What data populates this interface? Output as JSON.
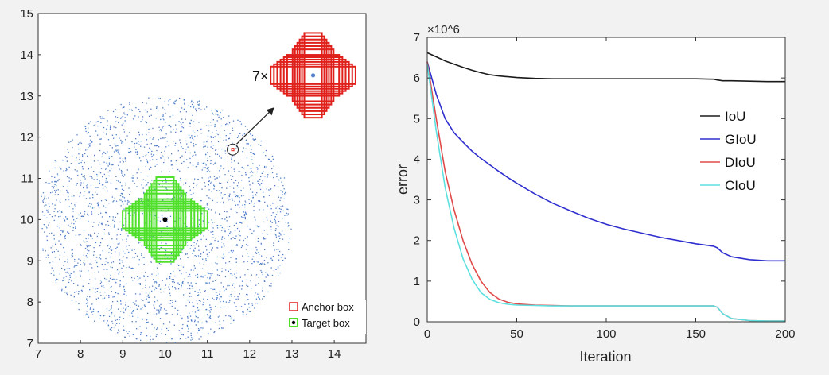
{
  "colors": {
    "background": "#f2f2f2",
    "scatter": "#4f7fc8",
    "anchor_box": "#e0201b",
    "target_box": "#4fe02a",
    "iou": "#1a1a1a",
    "giou": "#2f2fcf",
    "diou": "#e04a4a",
    "ciou": "#5ee0e0"
  },
  "chart_data": [
    {
      "type": "scatter",
      "xlim": [
        7,
        14.75
      ],
      "ylim": [
        7,
        15
      ],
      "xticks": [
        "7",
        "8",
        "9",
        "10",
        "11",
        "12",
        "13",
        "14"
      ],
      "yticks": [
        "7",
        "8",
        "9",
        "10",
        "11",
        "12",
        "13",
        "14",
        "15"
      ],
      "scatter_region": {
        "center": [
          10,
          10
        ],
        "radius": 3
      },
      "target_center": [
        10,
        10
      ],
      "anchor_highlight": [
        11.6,
        11.7
      ],
      "inset_center": [
        13.5,
        13.5
      ],
      "inset_multiplier": "7×",
      "legend": {
        "position": "bottom-right",
        "entries": [
          {
            "label": "Anchor box",
            "marker": "square-red"
          },
          {
            "label": "Target box",
            "marker": "square-green-dot"
          }
        ]
      }
    },
    {
      "type": "line",
      "xlabel": "Iteration",
      "ylabel": "error",
      "y_scale_label": "×10^6",
      "xlim": [
        0,
        200
      ],
      "ylim": [
        0,
        7
      ],
      "xticks": [
        "0",
        "50",
        "100",
        "150",
        "200"
      ],
      "yticks": [
        "0",
        "1",
        "2",
        "3",
        "4",
        "5",
        "6",
        "7"
      ],
      "legend": {
        "position": "right"
      },
      "x": [
        0,
        5,
        10,
        15,
        20,
        25,
        30,
        35,
        40,
        45,
        50,
        60,
        70,
        80,
        90,
        100,
        110,
        120,
        130,
        140,
        150,
        160,
        162,
        165,
        170,
        180,
        190,
        200
      ],
      "series": [
        {
          "name": "IoU",
          "color_key": "iou",
          "values": [
            6.62,
            6.52,
            6.42,
            6.34,
            6.26,
            6.19,
            6.13,
            6.08,
            6.05,
            6.03,
            6.01,
            5.99,
            5.98,
            5.98,
            5.98,
            5.98,
            5.98,
            5.98,
            5.98,
            5.98,
            5.98,
            5.97,
            5.95,
            5.93,
            5.93,
            5.92,
            5.91,
            5.91
          ]
        },
        {
          "name": "GIoU",
          "color_key": "giou",
          "values": [
            6.4,
            5.6,
            5.0,
            4.65,
            4.42,
            4.2,
            4.02,
            3.86,
            3.7,
            3.55,
            3.41,
            3.15,
            2.92,
            2.73,
            2.55,
            2.4,
            2.28,
            2.18,
            2.08,
            2.0,
            1.92,
            1.86,
            1.82,
            1.7,
            1.6,
            1.53,
            1.5,
            1.5
          ]
        },
        {
          "name": "DIoU",
          "color_key": "diou",
          "values": [
            6.4,
            5.0,
            3.7,
            2.75,
            2.0,
            1.42,
            1.0,
            0.72,
            0.56,
            0.48,
            0.44,
            0.41,
            0.4,
            0.39,
            0.39,
            0.39,
            0.39,
            0.39,
            0.39,
            0.39,
            0.39,
            0.39,
            0.36,
            0.2,
            0.08,
            0.03,
            0.02,
            0.02
          ]
        },
        {
          "name": "CIoU",
          "color_key": "ciou",
          "values": [
            6.35,
            4.7,
            3.3,
            2.3,
            1.55,
            1.05,
            0.72,
            0.55,
            0.47,
            0.43,
            0.41,
            0.4,
            0.39,
            0.39,
            0.39,
            0.39,
            0.39,
            0.39,
            0.39,
            0.39,
            0.39,
            0.39,
            0.36,
            0.2,
            0.08,
            0.03,
            0.02,
            0.02
          ]
        }
      ]
    }
  ]
}
